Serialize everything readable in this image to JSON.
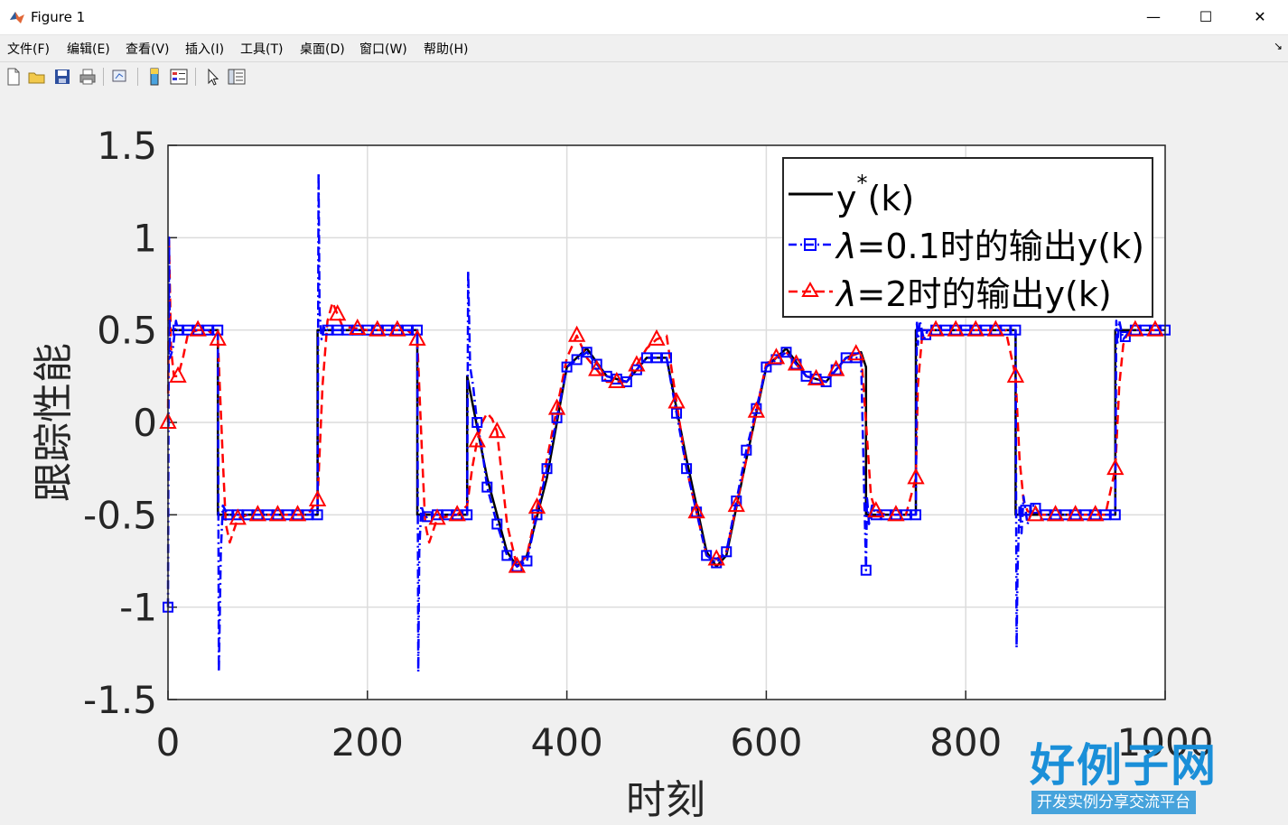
{
  "window": {
    "title": "Figure 1",
    "minimize_glyph": "—",
    "maximize_glyph": "☐",
    "close_glyph": "✕"
  },
  "menu": {
    "items": [
      "文件(F)",
      "编辑(E)",
      "查看(V)",
      "插入(I)",
      "工具(T)",
      "桌面(D)",
      "窗口(W)",
      "帮助(H)"
    ],
    "corner_glyph": "↘"
  },
  "toolbar": {
    "icons": [
      "new-figure-icon",
      "open-file-icon",
      "save-icon",
      "print-icon",
      "link-plot-icon",
      "insert-colorbar-icon",
      "insert-legend-icon",
      "pointer-icon",
      "property-inspector-icon"
    ]
  },
  "colors": {
    "reference": "#000000",
    "lambda01": "#0000ff",
    "lambda2": "#ff0000",
    "grid": "#dcdcdc"
  },
  "chart_data": {
    "type": "line",
    "xlabel": "时刻",
    "ylabel": "跟踪性能",
    "xlim": [
      0,
      1000
    ],
    "ylim": [
      -1.5,
      1.5
    ],
    "xticks": [
      0,
      200,
      400,
      600,
      800,
      1000
    ],
    "xtick_labels": [
      "0",
      "200",
      "400",
      "600",
      "800",
      "1000"
    ],
    "yticks": [
      1.5,
      1,
      0.5,
      0,
      -0.5,
      -1,
      -1.5
    ],
    "ytick_labels": [
      "1.5",
      "1",
      "0.5",
      "0",
      "-0.5",
      "-1",
      "-1.5"
    ],
    "grid": true,
    "legend_position": "top-right",
    "series": [
      {
        "name": "y*(k)",
        "name_main": "y",
        "name_sup": "*",
        "name_tail": "(k)",
        "color": "#000000",
        "style": "solid",
        "marker": "none",
        "x": [
          0,
          50,
          50,
          150,
          150,
          250,
          250,
          300,
          300,
          320,
          340,
          350,
          360,
          380,
          400,
          420,
          440,
          460,
          480,
          500,
          520,
          540,
          550,
          560,
          580,
          600,
          620,
          640,
          660,
          680,
          695,
          700,
          700,
          750,
          750,
          850,
          850,
          950,
          950,
          1000
        ],
        "y": [
          0.5,
          0.5,
          -0.5,
          -0.5,
          0.5,
          0.5,
          -0.5,
          -0.5,
          0.25,
          -0.3,
          -0.7,
          -0.78,
          -0.72,
          -0.3,
          0.3,
          0.4,
          0.25,
          0.22,
          0.35,
          0.35,
          -0.2,
          -0.7,
          -0.78,
          -0.72,
          -0.2,
          0.3,
          0.4,
          0.25,
          0.22,
          0.35,
          0.38,
          0.3,
          -0.5,
          -0.5,
          0.5,
          0.5,
          -0.5,
          -0.5,
          0.5,
          0.5
        ]
      },
      {
        "name": "λ=0.1时的输出y(k)",
        "name_lambda": "λ",
        "name_rest": "=0.1时的输出y(k)",
        "color": "#0000ff",
        "style": "dash-dot",
        "marker": "square",
        "x": [
          0,
          1,
          2,
          5,
          8,
          10,
          20,
          30,
          45,
          50,
          51,
          53,
          55,
          60,
          70,
          80,
          100,
          120,
          140,
          150,
          151,
          152,
          154,
          157,
          160,
          170,
          200,
          240,
          250,
          251,
          252,
          254,
          258,
          262,
          270,
          290,
          300,
          301,
          303,
          306,
          310,
          315,
          320,
          330,
          340,
          350,
          360,
          380,
          400,
          420,
          440,
          460,
          480,
          500,
          520,
          540,
          550,
          560,
          580,
          600,
          620,
          640,
          660,
          680,
          695,
          700,
          701,
          703,
          706,
          710,
          720,
          740,
          750,
          751,
          752,
          754,
          758,
          762,
          770,
          800,
          840,
          850,
          851,
          852,
          854,
          856,
          858,
          862,
          868,
          875,
          900,
          940,
          950,
          951,
          952,
          954,
          958,
          965,
          1000
        ],
        "y": [
          -1.0,
          1.0,
          0.35,
          0.4,
          0.55,
          0.5,
          0.5,
          0.5,
          0.5,
          0.5,
          -1.35,
          -0.7,
          -0.45,
          -0.5,
          -0.5,
          -0.5,
          -0.5,
          -0.5,
          -0.5,
          -0.5,
          1.35,
          0.6,
          0.45,
          0.52,
          0.5,
          0.5,
          0.5,
          0.5,
          0.5,
          -1.35,
          -0.7,
          -0.45,
          -0.52,
          -0.5,
          -0.5,
          -0.5,
          -0.5,
          0.82,
          0.3,
          0.2,
          0.0,
          -0.15,
          -0.35,
          -0.55,
          -0.72,
          -0.78,
          -0.75,
          -0.25,
          0.3,
          0.38,
          0.25,
          0.22,
          0.35,
          0.35,
          -0.25,
          -0.72,
          -0.76,
          -0.7,
          -0.15,
          0.3,
          0.38,
          0.25,
          0.22,
          0.35,
          0.35,
          -0.8,
          -0.4,
          -0.55,
          -0.45,
          -0.5,
          -0.5,
          -0.5,
          -0.5,
          0.55,
          0.42,
          0.55,
          0.45,
          0.5,
          0.5,
          0.5,
          0.5,
          0.5,
          -1.22,
          -0.8,
          -0.45,
          -0.6,
          -0.4,
          -0.55,
          -0.45,
          -0.5,
          -0.5,
          -0.5,
          -0.5,
          0.55,
          0.42,
          0.55,
          0.45,
          0.5,
          0.5
        ]
      },
      {
        "name": "λ=2时的输出y(k)",
        "name_lambda": "λ",
        "name_rest": "=2时的输出y(k)",
        "color": "#ff0000",
        "style": "dashed",
        "marker": "triangle",
        "x": [
          0,
          1,
          3,
          6,
          10,
          15,
          20,
          30,
          40,
          50,
          55,
          58,
          62,
          70,
          80,
          100,
          140,
          150,
          155,
          160,
          165,
          175,
          200,
          240,
          250,
          255,
          258,
          262,
          270,
          290,
          300,
          305,
          310,
          315,
          320,
          325,
          330,
          340,
          350,
          360,
          380,
          400,
          410,
          420,
          440,
          460,
          480,
          490,
          500,
          520,
          540,
          550,
          560,
          580,
          600,
          620,
          640,
          660,
          680,
          695,
          700,
          705,
          710,
          720,
          740,
          750,
          752,
          756,
          760,
          770,
          800,
          840,
          850,
          854,
          858,
          862,
          870,
          900,
          940,
          950,
          954,
          958,
          962,
          970,
          1000
        ],
        "y": [
          0.0,
          1.0,
          0.4,
          0.25,
          0.25,
          0.35,
          0.48,
          0.5,
          0.5,
          0.45,
          -0.2,
          -0.55,
          -0.65,
          -0.52,
          -0.5,
          -0.5,
          -0.5,
          -0.42,
          0.2,
          0.55,
          0.65,
          0.52,
          0.5,
          0.5,
          0.45,
          -0.2,
          -0.55,
          -0.65,
          -0.52,
          -0.5,
          -0.45,
          -0.25,
          -0.1,
          0.0,
          0.05,
          0.02,
          -0.05,
          -0.55,
          -0.78,
          -0.72,
          -0.2,
          0.35,
          0.47,
          0.35,
          0.22,
          0.22,
          0.4,
          0.45,
          0.47,
          -0.25,
          -0.72,
          -0.74,
          -0.7,
          -0.2,
          0.32,
          0.38,
          0.25,
          0.22,
          0.35,
          0.38,
          0.0,
          -0.4,
          -0.48,
          -0.5,
          -0.5,
          -0.3,
          0.2,
          0.45,
          0.5,
          0.5,
          0.5,
          0.5,
          0.25,
          -0.2,
          -0.42,
          -0.48,
          -0.5,
          -0.5,
          -0.5,
          -0.25,
          0.2,
          0.42,
          0.48,
          0.5,
          0.5
        ],
        "marker_x": [
          0,
          10,
          30,
          50,
          70,
          90,
          110,
          130,
          150,
          170,
          190,
          210,
          230,
          250,
          270,
          290,
          310,
          330,
          350,
          370,
          390,
          410,
          430,
          450,
          470,
          490,
          510,
          530,
          550,
          570,
          590,
          610,
          630,
          650,
          670,
          690,
          710,
          730,
          750,
          770,
          790,
          810,
          830,
          850,
          870,
          890,
          910,
          930,
          950,
          970,
          990
        ]
      }
    ]
  },
  "brand": {
    "name": "好例子网",
    "slogan": "开发实例分享交流平台"
  }
}
